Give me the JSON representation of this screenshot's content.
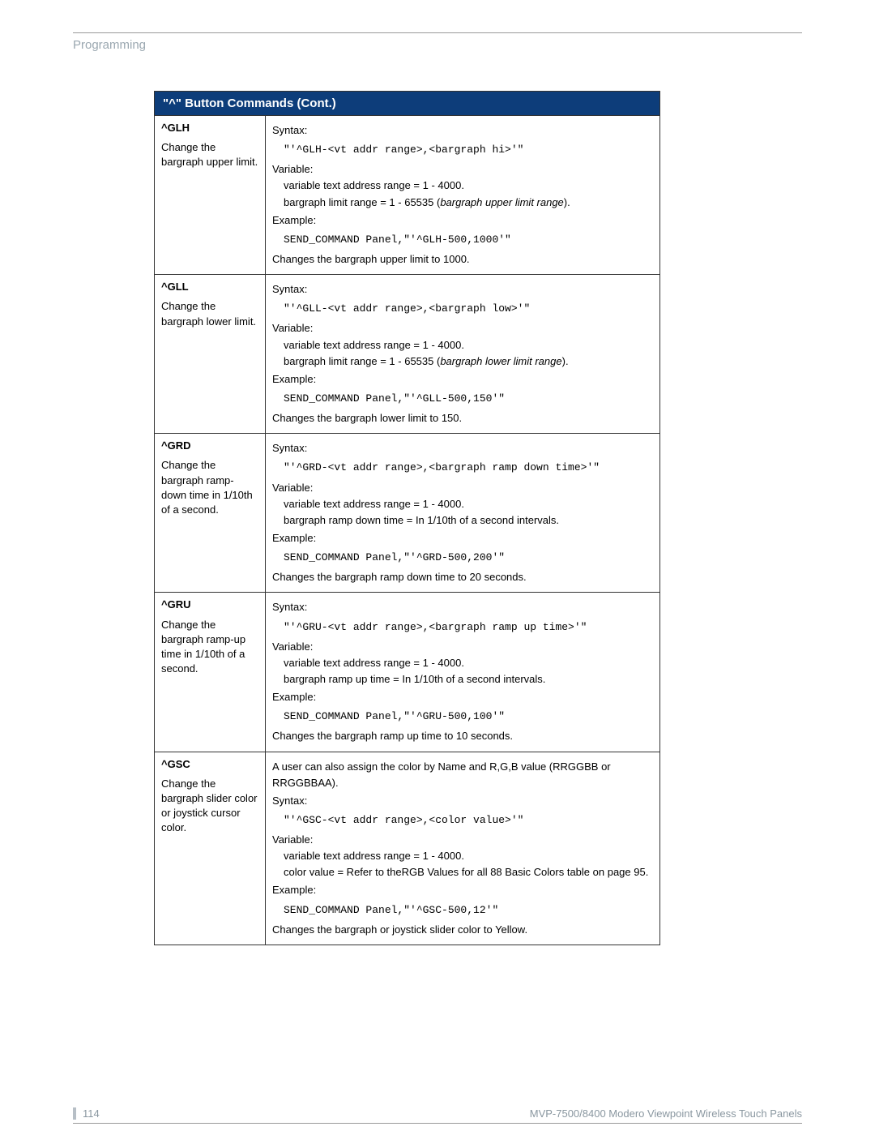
{
  "header": {
    "section": "Programming"
  },
  "table": {
    "title": "\"^\" Button Commands (Cont.)",
    "colors": {
      "header_bg": "#0d3d7a",
      "header_text": "#ffffff",
      "border": "#333333"
    },
    "rows": [
      {
        "cmd": "^GLH",
        "desc": "Change the bargraph upper limit.",
        "syntax_label": "Syntax:",
        "syntax_code": "\"'^GLH-<vt addr range>,<bargraph hi>'\"",
        "variable_label": "Variable:",
        "var1": "variable text address range = 1 - 4000.",
        "var2_pre": "bargraph limit range = 1 - 65535 (",
        "var2_it": "bargraph upper limit range",
        "var2_post": ").",
        "example_label": "Example:",
        "example_code": "SEND_COMMAND Panel,\"'^GLH-500,1000'\"",
        "result": "Changes the bargraph upper limit to 1000."
      },
      {
        "cmd": "^GLL",
        "desc": "Change the bargraph lower limit.",
        "syntax_label": "Syntax:",
        "syntax_code": "\"'^GLL-<vt addr range>,<bargraph low>'\"",
        "variable_label": "Variable:",
        "var1": "variable text address range = 1 - 4000.",
        "var2_pre": "bargraph limit range = 1 - 65535 (",
        "var2_it": "bargraph lower limit range",
        "var2_post": ").",
        "example_label": "Example:",
        "example_code": "SEND_COMMAND Panel,\"'^GLL-500,150'\"",
        "result": "Changes the bargraph lower limit to 150."
      },
      {
        "cmd": "^GRD",
        "desc": "Change the bargraph ramp-down time in 1/10th of a second.",
        "syntax_label": "Syntax:",
        "syntax_code": "\"'^GRD-<vt addr range>,<bargraph ramp down time>'\"",
        "variable_label": "Variable:",
        "var1": "variable text address range = 1 - 4000.",
        "var2": "bargraph ramp down time = In 1/10th of a second intervals.",
        "example_label": "Example:",
        "example_code": "SEND_COMMAND Panel,\"'^GRD-500,200'\"",
        "result": "Changes the bargraph ramp down time to 20 seconds."
      },
      {
        "cmd": "^GRU",
        "desc": "Change the bargraph ramp-up time in 1/10th of a second.",
        "syntax_label": "Syntax:",
        "syntax_code": "\"'^GRU-<vt addr range>,<bargraph ramp up time>'\"",
        "variable_label": "Variable:",
        "var1": "variable text address range = 1 - 4000.",
        "var2": "bargraph ramp up time = In 1/10th of a second intervals.",
        "example_label": "Example:",
        "example_code": "SEND_COMMAND Panel,\"'^GRU-500,100'\"",
        "result": "Changes the bargraph ramp up time to 10 seconds."
      },
      {
        "cmd": "^GSC",
        "desc": "Change the bargraph slider color or joystick cursor color.",
        "intro": "A user can also assign the color by Name and R,G,B value (RRGGBB or RRGGBBAA).",
        "syntax_label": "Syntax:",
        "syntax_code": "\"'^GSC-<vt addr range>,<color value>'\"",
        "variable_label": "Variable:",
        "var1": "variable text address range = 1 - 4000.",
        "var2": "color value = Refer to theRGB Values for all 88 Basic Colors table on page 95.",
        "example_label": "Example:",
        "example_code": "SEND_COMMAND Panel,\"'^GSC-500,12'\"",
        "result": "Changes the bargraph or joystick slider color to Yellow."
      }
    ]
  },
  "footer": {
    "page": "114",
    "doc": "MVP-7500/8400 Modero Viewpoint Wireless Touch Panels"
  }
}
